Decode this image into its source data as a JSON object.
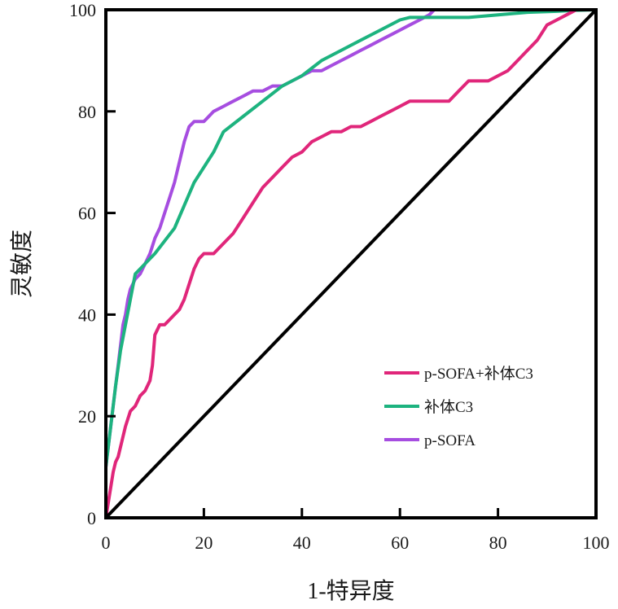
{
  "chart_data": {
    "type": "line",
    "xlabel": "1-特异度",
    "ylabel": "灵敏度",
    "xlim": [
      0,
      100
    ],
    "ylim": [
      0,
      100
    ],
    "xticks": [
      0,
      20,
      40,
      60,
      80,
      100
    ],
    "yticks": [
      0,
      20,
      40,
      60,
      80,
      100
    ],
    "grid": false,
    "legend_position": "bottom-right",
    "reference_line": {
      "x": [
        0,
        100
      ],
      "y": [
        0,
        100
      ],
      "color": "#000000"
    },
    "series": [
      {
        "name": "p-SOFA+补体C3",
        "color": "#e0267a",
        "x": [
          0,
          0.5,
          1,
          1.5,
          2,
          2.5,
          3,
          4,
          5,
          6,
          7,
          8,
          9,
          9.5,
          10,
          11,
          12,
          13,
          14,
          15,
          16,
          17,
          18,
          19,
          20,
          22,
          24,
          26,
          28,
          30,
          32,
          34,
          36,
          38,
          40,
          42,
          44,
          46,
          48,
          50,
          52,
          54,
          56,
          58,
          60,
          62,
          64,
          66,
          68,
          70,
          72,
          74,
          76,
          78,
          80,
          82,
          84,
          86,
          88,
          90,
          92,
          94,
          96,
          98,
          100
        ],
        "y": [
          0,
          3,
          6,
          9,
          11,
          12,
          14,
          18,
          21,
          22,
          24,
          25,
          27,
          30,
          36,
          38,
          38,
          39,
          40,
          41,
          43,
          46,
          49,
          51,
          52,
          52,
          54,
          56,
          59,
          62,
          65,
          67,
          69,
          71,
          72,
          74,
          75,
          76,
          76,
          77,
          77,
          78,
          79,
          80,
          81,
          82,
          82,
          82,
          82,
          82,
          84,
          86,
          86,
          86,
          87,
          88,
          90,
          92,
          94,
          97,
          98,
          99,
          100,
          100,
          100
        ]
      },
      {
        "name": "补体C3",
        "color": "#1db37f",
        "x": [
          0,
          1,
          2,
          3,
          4,
          5,
          6,
          10,
          14,
          18,
          22,
          24,
          28,
          32,
          36,
          40,
          44,
          48,
          52,
          56,
          60,
          62,
          66,
          70,
          74,
          80,
          86,
          92,
          96,
          100
        ],
        "y": [
          10,
          18,
          26,
          33,
          38,
          43,
          48,
          52,
          57,
          66,
          72,
          76,
          79,
          82,
          85,
          87,
          90,
          92,
          94,
          96,
          98,
          98.5,
          98.5,
          98.5,
          98.5,
          99,
          99.5,
          99.7,
          99.9,
          100
        ]
      },
      {
        "name": "p-SOFA",
        "color": "#a64de0",
        "x": [
          0,
          0.5,
          1,
          1.5,
          2,
          2.5,
          3,
          3.5,
          4,
          4.5,
          5,
          6,
          7,
          8,
          9,
          10,
          11,
          12,
          13,
          14,
          15,
          16,
          17,
          18,
          20,
          22,
          24,
          26,
          28,
          30,
          32,
          34,
          36,
          38,
          40,
          42,
          44,
          46,
          48,
          50,
          52,
          54,
          56,
          58,
          60,
          62,
          64,
          66,
          67,
          70,
          80,
          90,
          100
        ],
        "y": [
          10,
          14,
          18,
          22,
          26,
          30,
          34,
          38,
          40,
          43,
          45,
          47,
          48,
          50,
          52,
          55,
          57,
          60,
          63,
          66,
          70,
          74,
          77,
          78,
          78,
          80,
          81,
          82,
          83,
          84,
          84,
          85,
          85,
          86,
          87,
          88,
          88,
          89,
          90,
          91,
          92,
          93,
          94,
          95,
          96,
          97,
          98,
          99,
          100,
          100,
          100,
          100,
          100
        ]
      }
    ]
  }
}
